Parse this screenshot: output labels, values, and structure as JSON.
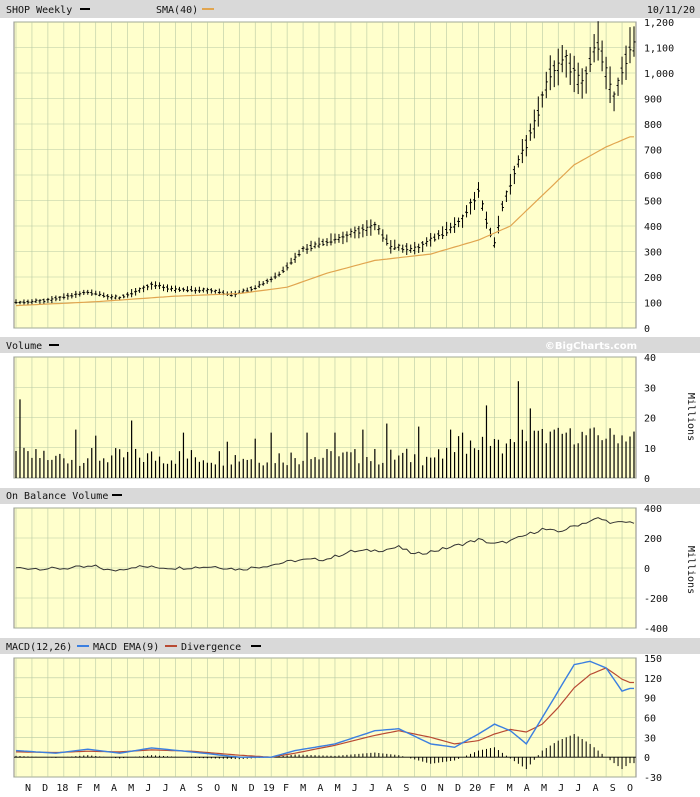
{
  "header": {
    "symbol_label": "SHOP Weekly",
    "sma_label": "SMA(40)",
    "date": "10/11/20"
  },
  "copyright": "©BigCharts.com",
  "colors": {
    "plot_bg": "#ffffcc",
    "grid": "#b7c9a4",
    "header_bg": "#d9d9d9",
    "price_bar": "#000000",
    "sma": "#e1a54f",
    "macd": "#3b7fe0",
    "macd_ema": "#b84a33",
    "divergence": "#000000",
    "obv": "#333333"
  },
  "x_axis": {
    "labels": [
      "N",
      "D",
      "18",
      "F",
      "M",
      "A",
      "M",
      "J",
      "J",
      "A",
      "S",
      "O",
      "N",
      "D",
      "19",
      "F",
      "M",
      "A",
      "M",
      "J",
      "J",
      "A",
      "S",
      "O",
      "N",
      "D",
      "20",
      "F",
      "M",
      "A",
      "M",
      "J",
      "J",
      "A",
      "S",
      "O"
    ]
  },
  "chart_data": [
    {
      "type": "ohlc",
      "title": "SHOP Weekly",
      "series_name": "SHOP Weekly",
      "overlay_name": "SMA(40)",
      "ylim": [
        0,
        1200
      ],
      "yticks": [
        0,
        100,
        200,
        300,
        400,
        500,
        600,
        700,
        800,
        900,
        "1,000",
        "1,100",
        "1,200"
      ],
      "price_knots": [
        [
          0,
          100
        ],
        [
          8,
          108
        ],
        [
          18,
          140
        ],
        [
          26,
          118
        ],
        [
          34,
          168
        ],
        [
          40,
          150
        ],
        [
          48,
          150
        ],
        [
          54,
          130
        ],
        [
          60,
          160
        ],
        [
          66,
          210
        ],
        [
          72,
          310
        ],
        [
          82,
          360
        ],
        [
          90,
          400
        ],
        [
          94,
          320
        ],
        [
          100,
          310
        ],
        [
          106,
          360
        ],
        [
          112,
          430
        ],
        [
          116,
          530
        ],
        [
          118,
          420
        ],
        [
          120,
          330
        ],
        [
          122,
          480
        ],
        [
          126,
          650
        ],
        [
          130,
          800
        ],
        [
          134,
          1000
        ],
        [
          138,
          1050
        ],
        [
          142,
          950
        ],
        [
          146,
          1120
        ],
        [
          150,
          900
        ],
        [
          154,
          1100
        ]
      ],
      "sma_knots": [
        [
          0,
          88
        ],
        [
          20,
          103
        ],
        [
          40,
          125
        ],
        [
          56,
          135
        ],
        [
          68,
          160
        ],
        [
          78,
          215
        ],
        [
          90,
          265
        ],
        [
          104,
          290
        ],
        [
          116,
          345
        ],
        [
          124,
          400
        ],
        [
          132,
          520
        ],
        [
          140,
          640
        ],
        [
          148,
          710
        ],
        [
          154,
          750
        ]
      ]
    },
    {
      "type": "bar",
      "title": "Volume",
      "unit": "Millions",
      "ylim": [
        0,
        40
      ],
      "yticks": [
        0,
        10,
        20,
        30,
        40
      ],
      "spikes": [
        [
          1,
          26
        ],
        [
          7,
          9
        ],
        [
          9,
          6
        ],
        [
          15,
          16
        ],
        [
          20,
          14
        ],
        [
          29,
          19
        ],
        [
          42,
          15
        ],
        [
          53,
          12
        ],
        [
          60,
          13
        ],
        [
          64,
          15
        ],
        [
          73,
          15
        ],
        [
          80,
          15
        ],
        [
          87,
          16
        ],
        [
          93,
          18
        ],
        [
          101,
          17
        ],
        [
          109,
          16
        ],
        [
          112,
          15
        ],
        [
          118,
          24
        ],
        [
          126,
          32
        ],
        [
          129,
          23
        ],
        [
          138,
          15
        ],
        [
          148,
          13
        ]
      ]
    },
    {
      "type": "line",
      "title": "On Balance Volume",
      "unit": "Millions",
      "ylim": [
        -400,
        400
      ],
      "yticks": [
        -400,
        -200,
        0,
        200,
        400
      ],
      "knots": [
        [
          0,
          0
        ],
        [
          10,
          -5
        ],
        [
          20,
          10
        ],
        [
          24,
          -20
        ],
        [
          30,
          10
        ],
        [
          40,
          0
        ],
        [
          50,
          10
        ],
        [
          56,
          -10
        ],
        [
          64,
          20
        ],
        [
          70,
          50
        ],
        [
          78,
          60
        ],
        [
          84,
          110
        ],
        [
          92,
          120
        ],
        [
          96,
          140
        ],
        [
          100,
          90
        ],
        [
          106,
          120
        ],
        [
          112,
          160
        ],
        [
          116,
          190
        ],
        [
          120,
          160
        ],
        [
          124,
          180
        ],
        [
          128,
          220
        ],
        [
          132,
          260
        ],
        [
          136,
          240
        ],
        [
          140,
          280
        ],
        [
          146,
          330
        ],
        [
          150,
          300
        ],
        [
          154,
          305
        ]
      ]
    },
    {
      "type": "line",
      "title": "MACD(12,26)",
      "legend": [
        "MACD(12,26)",
        "MACD EMA(9)",
        "Divergence"
      ],
      "ylim": [
        -30,
        150
      ],
      "yticks": [
        -30,
        0,
        30,
        60,
        90,
        120,
        150
      ],
      "macd_knots": [
        [
          0,
          10
        ],
        [
          10,
          6
        ],
        [
          18,
          12
        ],
        [
          26,
          6
        ],
        [
          34,
          14
        ],
        [
          44,
          8
        ],
        [
          56,
          0
        ],
        [
          64,
          0
        ],
        [
          70,
          10
        ],
        [
          80,
          20
        ],
        [
          90,
          40
        ],
        [
          96,
          43
        ],
        [
          104,
          20
        ],
        [
          110,
          15
        ],
        [
          116,
          35
        ],
        [
          120,
          50
        ],
        [
          124,
          40
        ],
        [
          128,
          20
        ],
        [
          132,
          60
        ],
        [
          136,
          100
        ],
        [
          140,
          140
        ],
        [
          144,
          145
        ],
        [
          148,
          135
        ],
        [
          152,
          100
        ],
        [
          154,
          104
        ]
      ],
      "ema_knots": [
        [
          0,
          8
        ],
        [
          10,
          7
        ],
        [
          18,
          9
        ],
        [
          26,
          8
        ],
        [
          34,
          11
        ],
        [
          44,
          9
        ],
        [
          56,
          3
        ],
        [
          64,
          0
        ],
        [
          70,
          6
        ],
        [
          80,
          18
        ],
        [
          90,
          33
        ],
        [
          96,
          40
        ],
        [
          104,
          30
        ],
        [
          110,
          20
        ],
        [
          116,
          25
        ],
        [
          120,
          35
        ],
        [
          124,
          42
        ],
        [
          128,
          38
        ],
        [
          132,
          50
        ],
        [
          136,
          75
        ],
        [
          140,
          105
        ],
        [
          144,
          125
        ],
        [
          148,
          135
        ],
        [
          152,
          118
        ],
        [
          154,
          113
        ]
      ]
    }
  ]
}
